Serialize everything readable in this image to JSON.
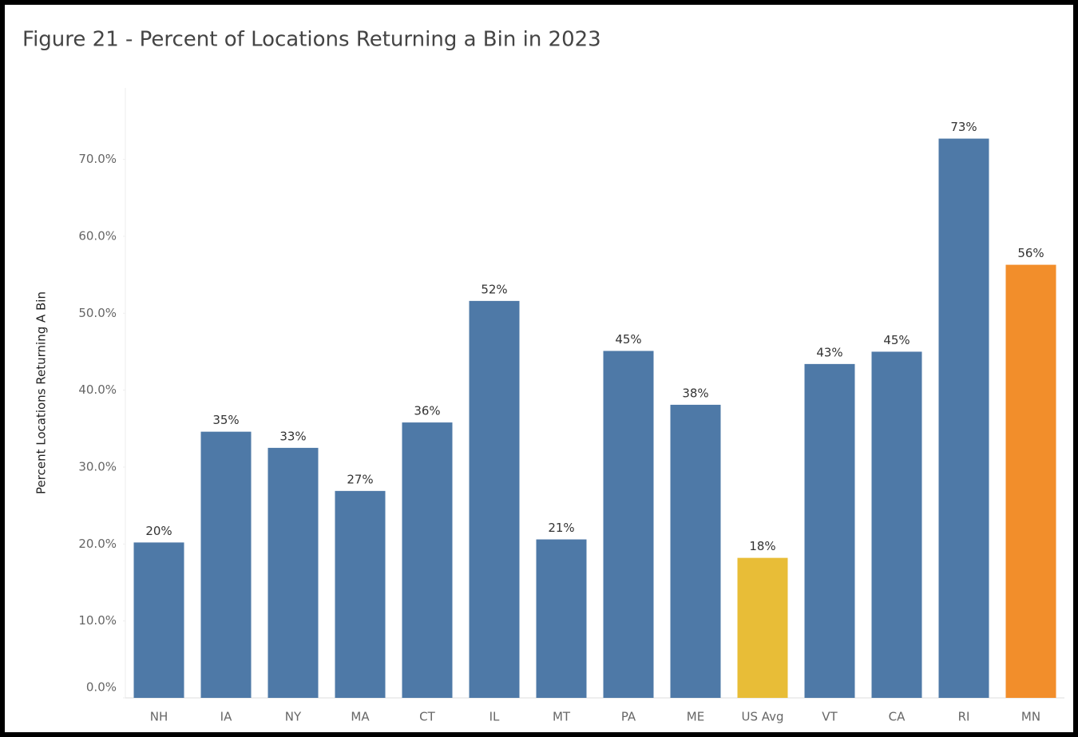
{
  "chart_data": {
    "type": "bar",
    "title": "Figure 21 - Percent of Locations Returning a Bin in 2023",
    "y_label": "Percent Locations Returning A Bin",
    "categories": [
      "NH",
      "IA",
      "NY",
      "MA",
      "CT",
      "IL",
      "MT",
      "PA",
      "ME",
      "US Avg",
      "VT",
      "CA",
      "RI",
      "MN"
    ],
    "values": [
      20.2,
      34.6,
      32.5,
      26.9,
      35.8,
      51.6,
      20.6,
      45.1,
      38.1,
      18.2,
      43.4,
      45.0,
      72.7,
      56.3
    ],
    "value_labels": [
      "20%",
      "35%",
      "33%",
      "27%",
      "36%",
      "52%",
      "21%",
      "45%",
      "38%",
      "18%",
      "43%",
      "45%",
      "73%",
      "56%"
    ],
    "colors": [
      "#4e79a7",
      "#4e79a7",
      "#4e79a7",
      "#4e79a7",
      "#4e79a7",
      "#4e79a7",
      "#4e79a7",
      "#4e79a7",
      "#4e79a7",
      "#e8bd37",
      "#4e79a7",
      "#4e79a7",
      "#4e79a7",
      "#f28e2b"
    ],
    "ylim": [
      0,
      79.3
    ],
    "yticks": [
      {
        "value": 0,
        "label": "0.0%"
      },
      {
        "value": 10,
        "label": "10.0%"
      },
      {
        "value": 20,
        "label": "20.0%"
      },
      {
        "value": 30,
        "label": "30.0%"
      },
      {
        "value": 40,
        "label": "40.0%"
      },
      {
        "value": 50,
        "label": "50.0%"
      },
      {
        "value": 60,
        "label": "60.0%"
      },
      {
        "value": 70,
        "label": "70.0%"
      }
    ],
    "grid": false
  }
}
